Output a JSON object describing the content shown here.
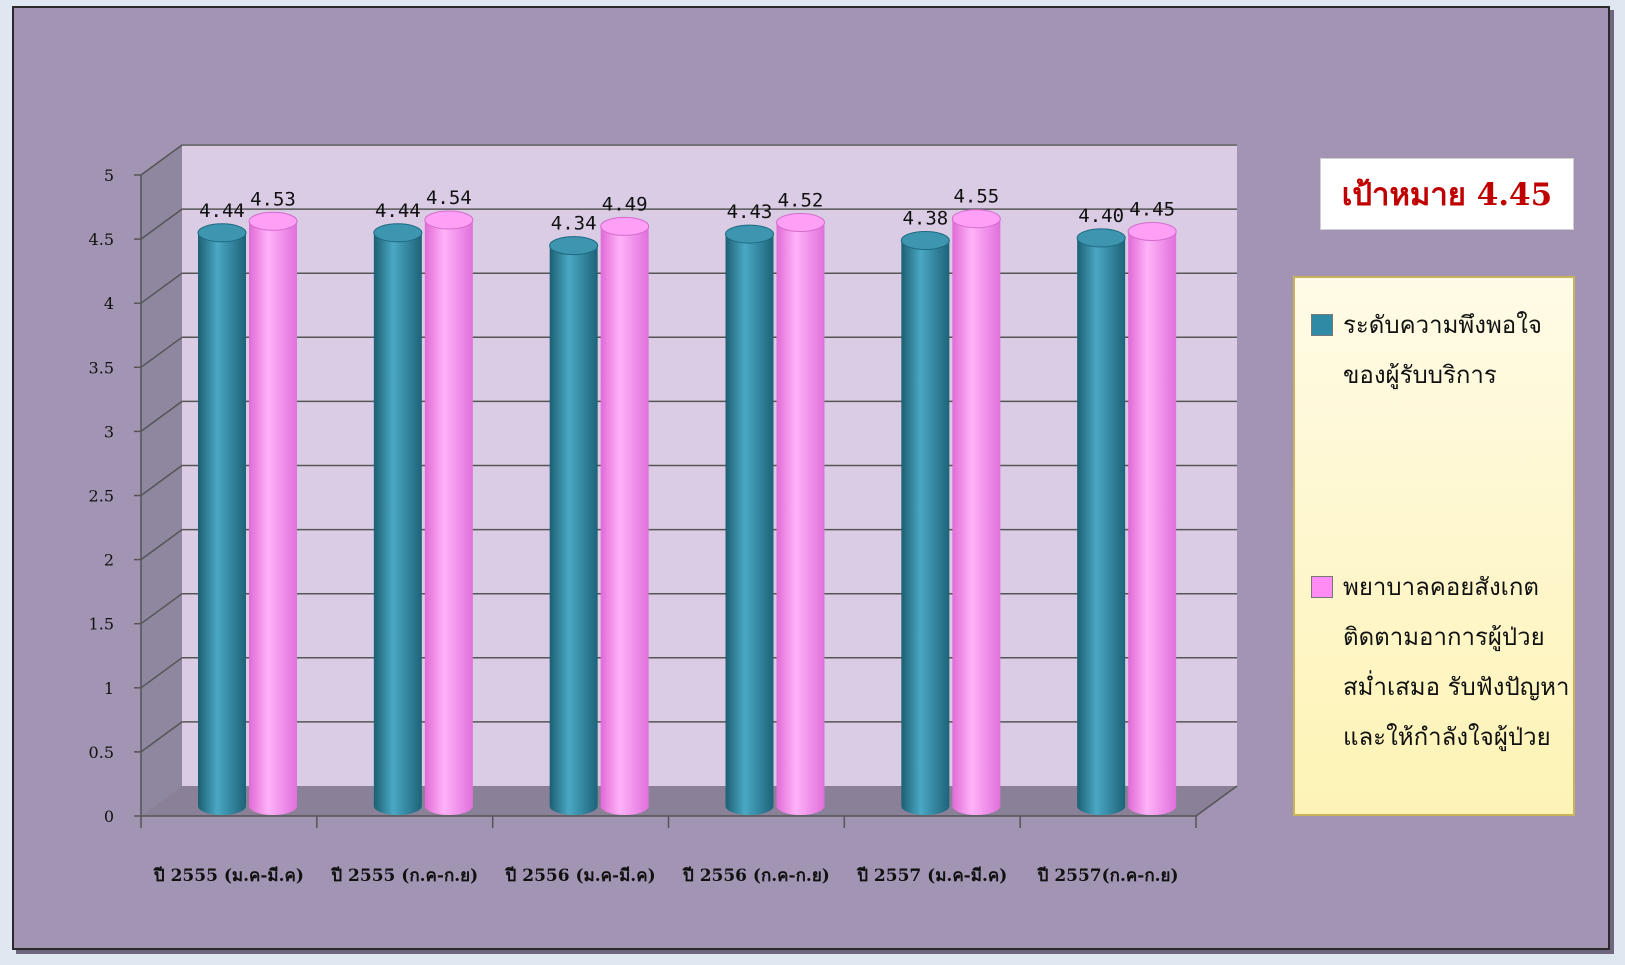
{
  "target_label": "เป้าหมาย 4.45",
  "colors": {
    "series1": "#2f8aa6",
    "series2": "#ff8cf5",
    "background": "#a295b4",
    "plot": "#dbcce6"
  },
  "chart_data": {
    "type": "bar",
    "categories": [
      "ปี 2555 (ม.ค-มี.ค)",
      "ปี 2555 (ก.ค-ก.ย)",
      "ปี 2556 (ม.ค-มี.ค)",
      "ปี 2556 (ก.ค-ก.ย)",
      "ปี 2557 (ม.ค-มี.ค)",
      "ปี 2557(ก.ค-ก.ย)"
    ],
    "series": [
      {
        "name": "ระดับความพึงพอใจ\nของผู้รับบริการ",
        "values": [
          4.44,
          4.44,
          4.34,
          4.43,
          4.38,
          4.4
        ],
        "labels": [
          "4.44",
          "4.44",
          "4.34",
          "4.43",
          "4.38",
          "4.40"
        ]
      },
      {
        "name": "พยาบาลคอยสังเกต\nติดตามอาการผู้ป่วย\nสม่ำเสมอ รับฟังปัญหา\nและให้กำลังใจผู้ป่วย",
        "values": [
          4.53,
          4.54,
          4.49,
          4.52,
          4.55,
          4.45
        ],
        "labels": [
          "4.53",
          "4.54",
          "4.49",
          "4.52",
          "4.55",
          "4.45"
        ]
      }
    ],
    "yticks": [
      "0",
      "0.5",
      "1",
      "1.5",
      "2",
      "2.5",
      "3",
      "3.5",
      "4",
      "4.5",
      "5"
    ],
    "ylim": [
      0,
      5
    ],
    "grid": true,
    "legend_position": "right",
    "title": "",
    "xlabel": "",
    "ylabel": ""
  }
}
